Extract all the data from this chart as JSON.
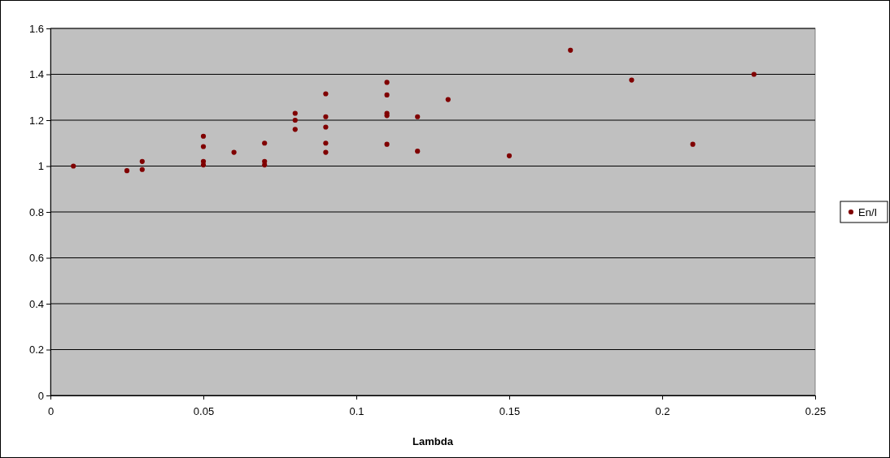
{
  "chart_data": {
    "type": "scatter",
    "xlabel": "Lambda",
    "series": [
      {
        "name": "En/I",
        "color": "#800000",
        "x": [
          0.0075,
          0.025,
          0.03,
          0.03,
          0.05,
          0.05,
          0.05,
          0.05,
          0.06,
          0.07,
          0.07,
          0.07,
          0.08,
          0.08,
          0.08,
          0.09,
          0.09,
          0.09,
          0.09,
          0.09,
          0.11,
          0.11,
          0.11,
          0.11,
          0.11,
          0.12,
          0.12,
          0.13,
          0.15,
          0.17,
          0.19,
          0.21,
          0.23
        ],
        "values": [
          1.0,
          0.98,
          1.02,
          0.985,
          1.13,
          1.085,
          1.02,
          1.005,
          1.06,
          1.1,
          1.02,
          1.005,
          1.23,
          1.2,
          1.16,
          1.315,
          1.215,
          1.17,
          1.1,
          1.06,
          1.365,
          1.31,
          1.23,
          1.22,
          1.095,
          1.215,
          1.065,
          1.29,
          1.045,
          1.505,
          1.375,
          1.095,
          1.4
        ]
      }
    ],
    "xlim": [
      0,
      0.25
    ],
    "xticks": [
      0,
      0.05,
      0.1,
      0.15,
      0.2,
      0.25
    ],
    "ylim": [
      0,
      1.6
    ],
    "yticks": [
      0,
      0.2,
      0.4,
      0.6,
      0.8,
      1,
      1.2,
      1.4,
      1.6
    ],
    "grid": "y",
    "legend": "right",
    "marker": "circle"
  }
}
